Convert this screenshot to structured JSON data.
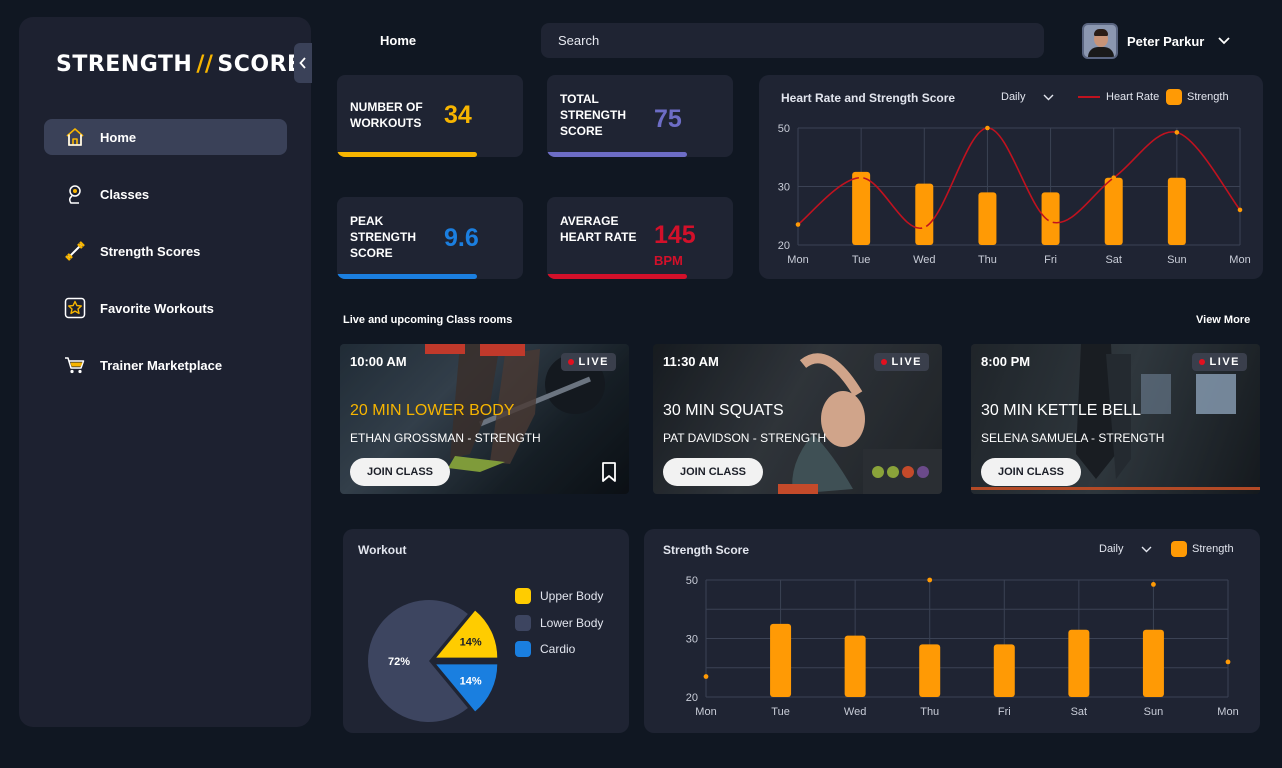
{
  "app": {
    "logo_left": "STRENGTH",
    "logo_slash": "//",
    "logo_right": "SCORE"
  },
  "sidebar": {
    "items": [
      {
        "label": "Home",
        "icon": "home-icon",
        "active": true
      },
      {
        "label": "Classes",
        "icon": "classes-icon"
      },
      {
        "label": "Strength Scores",
        "icon": "dumbbell-icon"
      },
      {
        "label": "Favorite Workouts",
        "icon": "star-icon"
      },
      {
        "label": "Trainer Marketplace",
        "icon": "cart-icon"
      }
    ]
  },
  "header": {
    "breadcrumb": "Home",
    "search_placeholder": "Search",
    "user_name": "Peter Parkur"
  },
  "stats": [
    {
      "label": "Number of workouts",
      "value": "34",
      "unit": "",
      "color": "#f7b500",
      "progress": 0.75
    },
    {
      "label": "Total strength score",
      "value": "75",
      "unit": "",
      "color": "#6d6dc6",
      "progress": 0.75
    },
    {
      "label": "Peak strength score",
      "value": "9.6",
      "unit": "",
      "color": "#1b7fe0",
      "progress": 0.75
    },
    {
      "label": "Average heart rate",
      "value": "145",
      "unit": "BPM",
      "color": "#d3102a",
      "progress": 0.75
    }
  ],
  "colors": {
    "accent_orange": "#ff9a05",
    "heart_red": "#c0121f",
    "panel": "#1f2433",
    "sidebar": "#1d2130"
  },
  "heart_chart": {
    "title": "Heart Rate and Strength Score",
    "period": "Daily",
    "legend_line": "Heart Rate",
    "legend_bar": "Strength"
  },
  "classes": {
    "section_title": "Live and upcoming Class rooms",
    "view_more": "View More",
    "live_label": "LIVE",
    "join_label": "JOIN CLASS",
    "items": [
      {
        "time": "10:00 AM",
        "title": "20 MIN LOWER BODY",
        "trainer": "ETHAN GROSSMAN - STRENGTH",
        "title_color": "#f7b500"
      },
      {
        "time": "11:30 AM",
        "title": "30 MIN SQUATS",
        "trainer": "PAT DAVIDSON - STRENGTH",
        "title_color": "#ffffff"
      },
      {
        "time": "8:00 PM",
        "title": "30 MIN KETTLE BELL",
        "trainer": "SELENA SAMUELA - STRENGTH",
        "title_color": "#ffffff"
      }
    ]
  },
  "workout_chart": {
    "title": "Workout",
    "legend": [
      "Upper Body",
      "Lower Body",
      "Cardio"
    ]
  },
  "strength_chart": {
    "title": "Strength Score",
    "period": "Daily",
    "legend_bar": "Strength"
  },
  "chart_data": [
    {
      "type": "bar",
      "title": "Heart Rate and Strength Score",
      "categories": [
        "Mon",
        "Tue",
        "Wed",
        "Thu",
        "Fri",
        "Sat",
        "Sun",
        "Mon"
      ],
      "y_ticks": [
        20,
        30,
        50
      ],
      "series": [
        {
          "name": "Strength",
          "kind": "bar",
          "values": [
            null,
            35,
            31,
            29,
            29,
            33,
            33,
            null
          ]
        },
        {
          "name": "Heart Rate",
          "kind": "line",
          "values": [
            23.5,
            33,
            23,
            50,
            24,
            33,
            48.5,
            26
          ]
        }
      ]
    },
    {
      "type": "pie",
      "title": "Workout",
      "labels": [
        "Lower Body",
        "Upper Body",
        "Cardio"
      ],
      "values": [
        72,
        14,
        14
      ],
      "colors": [
        "#3d4560",
        "#ffcc00",
        "#1a7fe0"
      ]
    },
    {
      "type": "bar",
      "title": "Strength Score",
      "categories": [
        "Mon",
        "Tue",
        "Wed",
        "Thu",
        "Fri",
        "Sat",
        "Sun",
        "Mon"
      ],
      "y_ticks": [
        20,
        30,
        50
      ],
      "series": [
        {
          "name": "Strength",
          "kind": "bar",
          "values": [
            null,
            35,
            31,
            29,
            29,
            33,
            33,
            null
          ]
        },
        {
          "name": "Points",
          "kind": "point",
          "values": [
            23.5,
            null,
            null,
            50,
            null,
            null,
            48.5,
            26
          ]
        }
      ]
    }
  ]
}
